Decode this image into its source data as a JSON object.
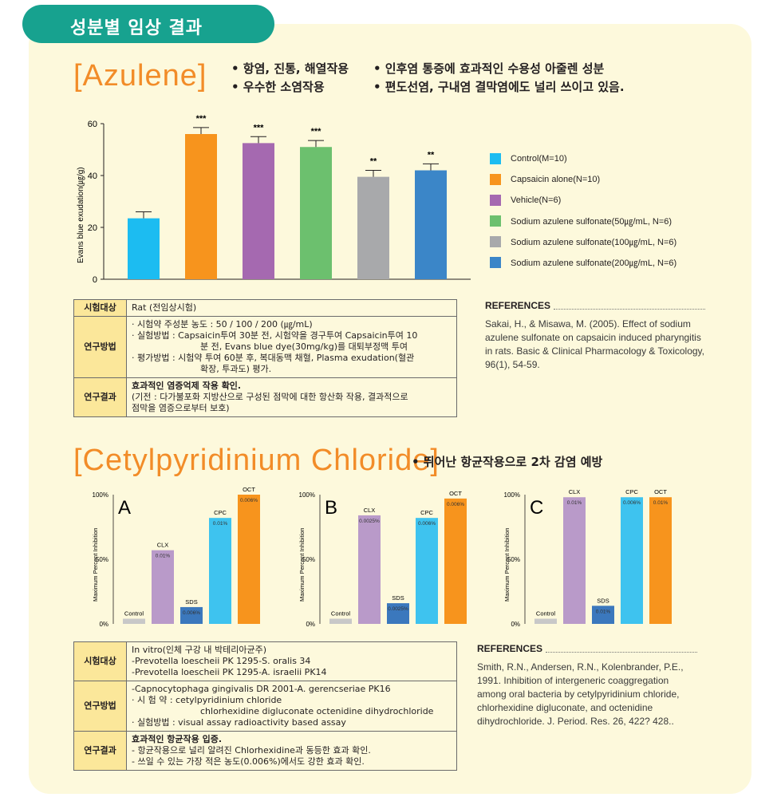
{
  "header": {
    "title": "성분별 임상 결과"
  },
  "azulene": {
    "title": "[Azulene]",
    "bullets_left": [
      "• 항염, 진통, 해열작용",
      "• 우수한 소염작용"
    ],
    "bullets_right": [
      "• 인후염 통증에 효과적인 수용성 아줄렌 성분",
      "• 편도선염, 구내염 결막염에도 널리 쓰이고 있음."
    ],
    "legend": [
      {
        "label": "Control(M=10)",
        "color": "#1cbcf1"
      },
      {
        "label": "Capsaicin alone(N=10)",
        "color": "#f7941d"
      },
      {
        "label": "Vehicle(N=6)",
        "color": "#a569b0"
      },
      {
        "label": "Sodium azulene sulfonate(50㎍/mL, N=6)",
        "color": "#6cc06e"
      },
      {
        "label": "Sodium azulene sulfonate(100㎍/mL, N=6)",
        "color": "#a8a9ab"
      },
      {
        "label": "Sodium azulene sulfonate(200㎍/mL, N=6)",
        "color": "#3b86c8"
      }
    ],
    "table": {
      "rows": [
        {
          "label": "시험대상",
          "lines": [
            "Rat (전임상시험)"
          ]
        },
        {
          "label": "연구방법",
          "lines": [
            "· 시험약 주성분 농도 : 50 / 100 / 200 (㎍/mL)",
            "· 실험방법 : Capsaicin투여 30분 전, 시험약을 경구투여 Capsaicin투여 10",
            "분 전, Evans blue dye(30mg/kg)를 대퇴부정맥 투여",
            "· 평가방법 : 시험약 투여 60분 후, 복대동맥 채혈, Plasma exudation(혈관",
            "확장, 투과도) 평가."
          ]
        },
        {
          "label": "연구결과",
          "lines": [
            "효과적인 염증억제 작용 확인.",
            "(기전 : 다가불포화 지방산으로 구성된 점막에 대한 항산화 작용, 결과적으로",
            "점막을 염증으로부터 보호)"
          ]
        }
      ]
    },
    "references": {
      "heading": "REFERENCES",
      "text": "Sakai, H., & Misawa, M. (2005). Effect of sodium azulene sulfonate on capsaicin induced pharyngitis in rats. Basic & Clinical Pharmacology & Toxicology, 96(1), 54-59."
    }
  },
  "cpc": {
    "title": "[Cetylpyridinium Chloride]",
    "bullet": "• 뛰어난 항균작용으로 2차 감염 예방",
    "table": {
      "rows": [
        {
          "label": "시험대상",
          "lines": [
            "In vitro(인체 구강 내 박테리아균주)",
            "-Prevotella loescheii PK 1295-S. oralis 34",
            "-Prevotella loescheii PK 1295-A. israelii PK14"
          ]
        },
        {
          "label": "연구방법",
          "lines": [
            "-Capnocytophaga gingivalis DR 2001-A. gerencseriae PK16",
            "· 시 험 약 : cetylpyridinium chloride",
            "chlorhexidine digluconate octenidine dihydrochloride",
            "· 실험방법 : visual assay radioactivity based assay"
          ]
        },
        {
          "label": "연구결과",
          "lines": [
            "효과적인 항균작용 입증.",
            "- 항균작용으로 널리 알려진 Chlorhexidine과 동등한 효과 확인.",
            "- 쓰일 수 있는 가장 적은 농도(0.006%)에서도 강한 효과 확인."
          ]
        }
      ]
    },
    "references": {
      "heading": "REFERENCES",
      "text": "Smith, R.N., Andersen, R.N., Kolenbrander, P.E., 1991. Inhibition of intergeneric coaggregation among oral bacteria by cetylpyridinium chloride, chlorhexidine digluconate, and octenidine dihydrochloride. J. Period. Res. 26, 422? 428.."
    }
  },
  "chart_data": [
    {
      "type": "bar",
      "ylabel": "Evans blue exudation(㎍/g)",
      "ylim": [
        0,
        60
      ],
      "yticks": [
        "0",
        "20",
        "40",
        "60"
      ],
      "bars": [
        {
          "value": 23.5,
          "error": 2.5,
          "sig": "",
          "color": "#1cbcf1"
        },
        {
          "value": 56,
          "error": 2.5,
          "sig": "***",
          "color": "#f7941d"
        },
        {
          "value": 52.5,
          "error": 2.5,
          "sig": "***",
          "color": "#a569b0"
        },
        {
          "value": 51,
          "error": 2.5,
          "sig": "***",
          "color": "#6cc06e"
        },
        {
          "value": 39.5,
          "error": 2.5,
          "sig": "**",
          "color": "#a8a9ab"
        },
        {
          "value": 42,
          "error": 2.5,
          "sig": "**",
          "color": "#3b86c8"
        }
      ]
    },
    {
      "type": "bar",
      "panel": "A",
      "ylabel": "Maximum Percent Inhibition",
      "yticks": [
        "0%",
        "50%",
        "100%"
      ],
      "ylim": [
        0,
        100
      ],
      "bars": [
        {
          "name": "Control",
          "value": 4,
          "label": "",
          "color": "#c8c8c8"
        },
        {
          "name": "CLX",
          "value": 57,
          "label": "0.01%",
          "color": "#b99ac9"
        },
        {
          "name": "SDS",
          "value": 13,
          "label": "0.006%",
          "color": "#3b78bd"
        },
        {
          "name": "CPC",
          "value": 82,
          "label": "0.01%",
          "color": "#3ec3ef"
        },
        {
          "name": "OCT",
          "value": 100,
          "label": "0.006%",
          "color": "#f7941d"
        }
      ]
    },
    {
      "type": "bar",
      "panel": "B",
      "ylabel": "Maximum Percent Inhibition",
      "yticks": [
        "0%",
        "50%",
        "100%"
      ],
      "ylim": [
        0,
        100
      ],
      "bars": [
        {
          "name": "Control",
          "value": 4,
          "label": "",
          "color": "#c8c8c8"
        },
        {
          "name": "CLX",
          "value": 84,
          "label": "0.0025%",
          "color": "#b99ac9"
        },
        {
          "name": "SDS",
          "value": 16,
          "label": "0.0025%",
          "color": "#3b78bd"
        },
        {
          "name": "CPC",
          "value": 82,
          "label": "0.006%",
          "color": "#3ec3ef"
        },
        {
          "name": "OCT",
          "value": 97,
          "label": "0.006%",
          "color": "#f7941d"
        }
      ]
    },
    {
      "type": "bar",
      "panel": "C",
      "ylabel": "Maximum Percent Inhibition",
      "yticks": [
        "0%",
        "50%",
        "100%"
      ],
      "ylim": [
        0,
        100
      ],
      "bars": [
        {
          "name": "Control",
          "value": 4,
          "label": "",
          "color": "#c8c8c8"
        },
        {
          "name": "CLX",
          "value": 98,
          "label": "0.01%",
          "color": "#b99ac9"
        },
        {
          "name": "SDS",
          "value": 14,
          "label": "0.01%",
          "color": "#3b78bd"
        },
        {
          "name": "CPC",
          "value": 98,
          "label": "0.006%",
          "color": "#3ec3ef"
        },
        {
          "name": "OCT",
          "value": 98,
          "label": "0.01%",
          "color": "#f7941d"
        }
      ]
    }
  ]
}
